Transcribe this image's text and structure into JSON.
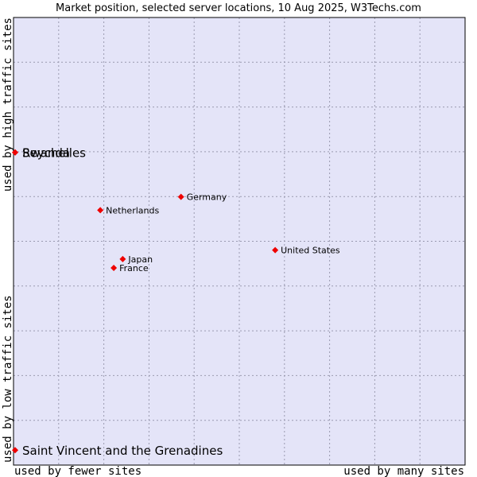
{
  "chart_data": {
    "type": "scatter",
    "title": "Market position, selected server locations, 10 Aug 2025, W3Techs.com",
    "xlabel_low": "used by fewer sites",
    "xlabel_high": "used by many sites",
    "ylabel_low": "used by low traffic sites",
    "ylabel_high": "used by high traffic sites",
    "xlim": [
      0,
      1
    ],
    "ylim": [
      0,
      1
    ],
    "grid": true,
    "colors": {
      "plot_background": "#e4e4f8",
      "grid": "#9a9ab0",
      "marker": "#ee0000",
      "frame": "#000000"
    },
    "points": [
      {
        "label": "Seychelles",
        "x": 0.0,
        "y": 0.7,
        "label_size": "large"
      },
      {
        "label": "Rwanda",
        "x": 0.0,
        "y": 0.7,
        "label_size": "large"
      },
      {
        "label": "Saint Vincent and the Grenadines",
        "x": 0.0,
        "y": 0.03,
        "label_size": "large"
      },
      {
        "label": "Germany",
        "x": 0.37,
        "y": 0.6,
        "label_size": "small"
      },
      {
        "label": "Netherlands",
        "x": 0.19,
        "y": 0.57,
        "label_size": "small"
      },
      {
        "label": "United States",
        "x": 0.58,
        "y": 0.48,
        "label_size": "small"
      },
      {
        "label": "Japan",
        "x": 0.24,
        "y": 0.46,
        "label_size": "small"
      },
      {
        "label": "France",
        "x": 0.22,
        "y": 0.44,
        "label_size": "small"
      }
    ]
  }
}
